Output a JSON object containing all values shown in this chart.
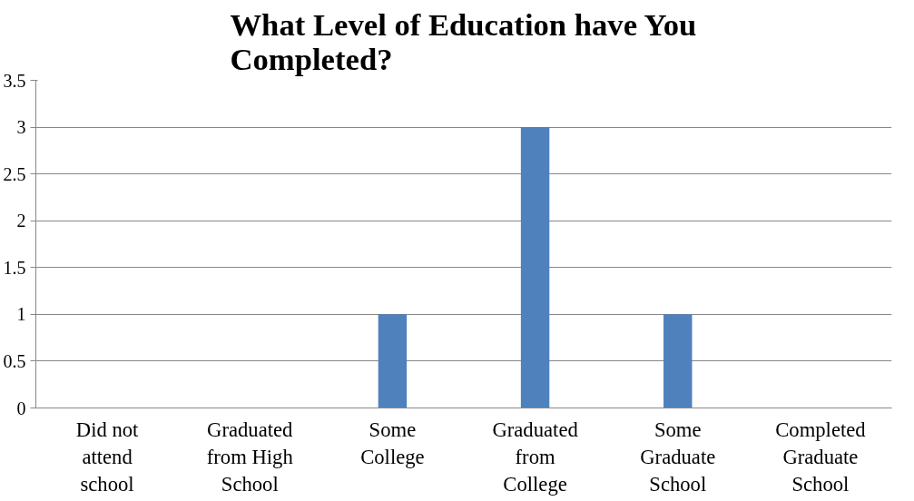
{
  "chart_data": {
    "type": "bar",
    "title": "What Level of Education have You Completed?",
    "categories": [
      "Did not attend school",
      "Graduated from High School",
      "Some College",
      "Graduated from College",
      "Some Graduate School",
      "Completed Graduate School"
    ],
    "values": [
      0,
      0,
      1,
      3,
      1,
      0
    ],
    "color": "#4f81bd",
    "ylim": [
      0,
      3.5
    ],
    "yticks": [
      0,
      0.5,
      1,
      1.5,
      2,
      2.5,
      3,
      3.5
    ],
    "grid": "y"
  }
}
